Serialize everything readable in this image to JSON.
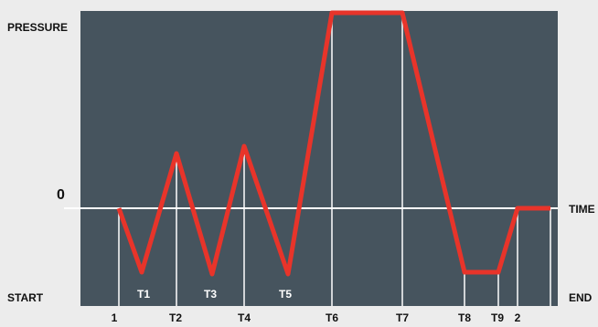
{
  "axis_labels": {
    "y": "PRESSURE",
    "zero": "0",
    "x": "TIME",
    "start": "START",
    "end": "END"
  },
  "time_labels": {
    "bottom": [
      "1",
      "T2",
      "T4",
      "T6",
      "T7",
      "T8",
      "T9",
      "2"
    ],
    "inside": [
      "T1",
      "T3",
      "T5"
    ]
  }
}
